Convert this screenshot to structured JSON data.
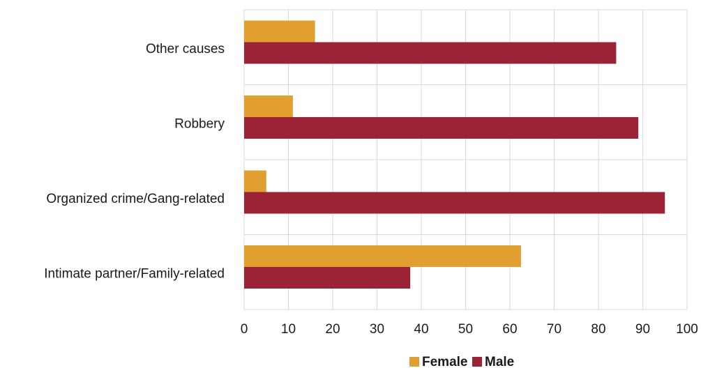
{
  "chart_data": {
    "type": "bar",
    "orientation": "horizontal",
    "categories": [
      "Other causes",
      "Robbery",
      "Organized crime/Gang-related",
      "Intimate partner/Family-related"
    ],
    "series": [
      {
        "name": "Female",
        "color": "#E09F2E",
        "values": [
          16,
          11,
          5,
          62.5
        ]
      },
      {
        "name": "Male",
        "color": "#9B2335",
        "values": [
          84,
          89,
          95,
          37.5
        ]
      }
    ],
    "xlim": [
      0,
      100
    ],
    "x_ticks": [
      0,
      10,
      20,
      30,
      40,
      50,
      60,
      70,
      80,
      90,
      100
    ],
    "grid": true,
    "legend_position": "bottom"
  }
}
